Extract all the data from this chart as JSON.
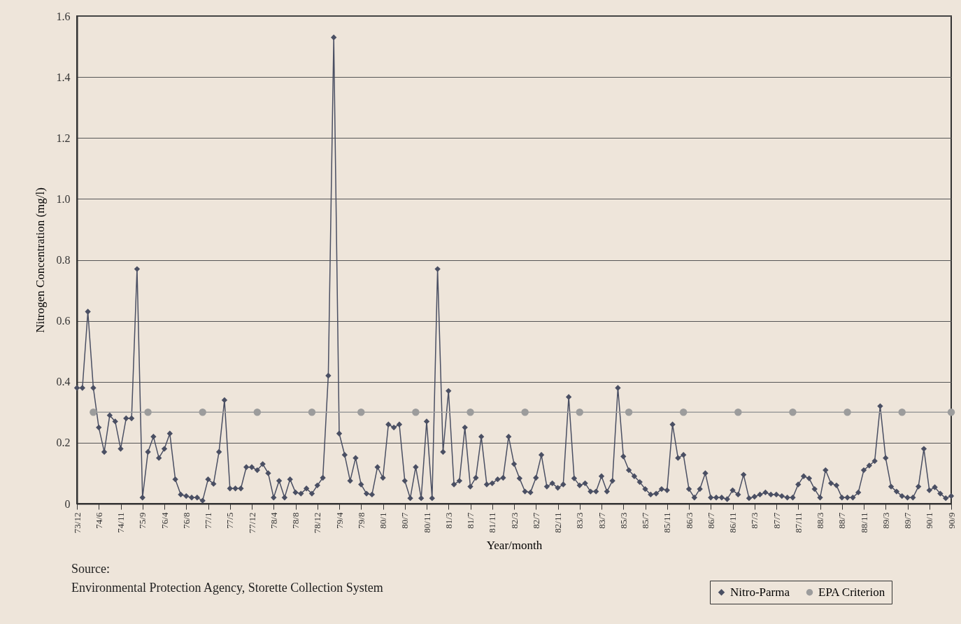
{
  "chart_data": {
    "type": "line",
    "xlabel": "Year/month",
    "ylabel": "Nitrogen Concentration (mg/l)",
    "categories": [
      "73/12",
      null,
      null,
      null,
      "74/6",
      null,
      null,
      null,
      "74/11",
      null,
      null,
      null,
      "75/9",
      null,
      null,
      null,
      "76/4",
      null,
      null,
      null,
      "76/8",
      null,
      null,
      null,
      "77/1",
      null,
      null,
      null,
      "77/5",
      null,
      null,
      null,
      "77/12",
      null,
      null,
      null,
      "78/4",
      null,
      null,
      null,
      "78/8",
      null,
      null,
      null,
      "78/12",
      null,
      null,
      null,
      "79/4",
      null,
      null,
      null,
      "79/8",
      null,
      null,
      null,
      "80/1",
      null,
      null,
      null,
      "80/7",
      null,
      null,
      null,
      "80/11",
      null,
      null,
      null,
      "81/3",
      null,
      null,
      null,
      "81/7",
      null,
      null,
      null,
      "81/11",
      null,
      null,
      null,
      "82/3",
      null,
      null,
      null,
      "82/7",
      null,
      null,
      null,
      "82/11",
      null,
      null,
      null,
      "83/3",
      null,
      null,
      null,
      "83/7",
      null,
      null,
      null,
      "85/3",
      null,
      null,
      null,
      "85/7",
      null,
      null,
      null,
      "85/11",
      null,
      null,
      null,
      "86/3",
      null,
      null,
      null,
      "86/7",
      null,
      null,
      null,
      "86/11",
      null,
      null,
      null,
      "87/3",
      null,
      null,
      null,
      "87/7",
      null,
      null,
      null,
      "87/11",
      null,
      null,
      null,
      "88/3",
      null,
      null,
      null,
      "88/7",
      null,
      null,
      null,
      "88/11",
      null,
      null,
      null,
      "89/3",
      null,
      null,
      null,
      "89/7",
      null,
      null,
      null,
      "90/1",
      null,
      null,
      null,
      "90/9"
    ],
    "series": [
      {
        "name": "Nitro-Parma",
        "color": "#4a4f63",
        "marker": "diamond",
        "values": [
          0.38,
          0.38,
          0.63,
          0.38,
          0.25,
          0.17,
          0.29,
          0.27,
          0.18,
          0.28,
          0.28,
          0.77,
          0.02,
          0.17,
          0.22,
          0.15,
          0.18,
          0.23,
          0.08,
          0.03,
          0.025,
          0.02,
          0.02,
          0.01,
          0.08,
          0.065,
          0.17,
          0.34,
          0.05,
          0.05,
          0.05,
          0.12,
          0.12,
          0.11,
          0.13,
          0.1,
          0.02,
          0.075,
          0.02,
          0.08,
          0.037,
          0.033,
          0.05,
          0.033,
          0.06,
          0.085,
          0.42,
          1.53,
          0.23,
          0.16,
          0.075,
          0.15,
          0.063,
          0.033,
          0.03,
          0.12,
          0.085,
          0.26,
          0.25,
          0.26,
          0.075,
          0.018,
          0.12,
          0.018,
          0.27,
          0.018,
          0.77,
          0.17,
          0.37,
          0.063,
          0.075,
          0.25,
          0.056,
          0.085,
          0.22,
          0.063,
          0.067,
          0.08,
          0.085,
          0.22,
          0.13,
          0.083,
          0.04,
          0.037,
          0.085,
          0.16,
          0.056,
          0.067,
          0.052,
          0.063,
          0.35,
          0.083,
          0.06,
          0.067,
          0.04,
          0.04,
          0.09,
          0.04,
          0.075,
          0.38,
          0.155,
          0.11,
          0.09,
          0.071,
          0.048,
          0.03,
          0.033,
          0.048,
          0.044,
          0.26,
          0.15,
          0.16,
          0.048,
          0.02,
          0.048,
          0.1,
          0.02,
          0.02,
          0.02,
          0.015,
          0.044,
          0.03,
          0.095,
          0.018,
          0.023,
          0.03,
          0.037,
          0.03,
          0.03,
          0.025,
          0.02,
          0.02,
          0.063,
          0.09,
          0.083,
          0.048,
          0.02,
          0.11,
          0.067,
          0.06,
          0.02,
          0.02,
          0.02,
          0.037,
          0.11,
          0.125,
          0.14,
          0.32,
          0.15,
          0.056,
          0.04,
          0.025,
          0.02,
          0.02,
          0.056,
          0.18,
          0.044,
          0.054,
          0.033,
          0.018,
          0.025
        ]
      },
      {
        "name": "EPA Criterion",
        "color": "#9c9c9c",
        "marker": "circle",
        "values": [
          null,
          null,
          null,
          0.3,
          null,
          null,
          null,
          null,
          null,
          null,
          null,
          null,
          null,
          0.3,
          null,
          null,
          null,
          null,
          null,
          null,
          null,
          null,
          null,
          0.3,
          null,
          null,
          null,
          null,
          null,
          null,
          null,
          null,
          null,
          0.3,
          null,
          null,
          null,
          null,
          null,
          null,
          null,
          null,
          null,
          0.3,
          null,
          null,
          null,
          null,
          null,
          null,
          null,
          null,
          0.3,
          null,
          null,
          null,
          null,
          null,
          null,
          null,
          null,
          null,
          0.3,
          null,
          null,
          null,
          null,
          null,
          null,
          null,
          null,
          null,
          0.3,
          null,
          null,
          null,
          null,
          null,
          null,
          null,
          null,
          null,
          0.3,
          null,
          null,
          null,
          null,
          null,
          null,
          null,
          null,
          null,
          0.3,
          null,
          null,
          null,
          null,
          null,
          null,
          null,
          null,
          0.3,
          null,
          null,
          null,
          null,
          null,
          null,
          null,
          null,
          null,
          0.3,
          null,
          null,
          null,
          null,
          null,
          null,
          null,
          null,
          null,
          0.3,
          null,
          null,
          null,
          null,
          null,
          null,
          null,
          null,
          null,
          0.3,
          null,
          null,
          null,
          null,
          null,
          null,
          null,
          null,
          null,
          0.3,
          null,
          null,
          null,
          null,
          null,
          null,
          null,
          null,
          null,
          0.3,
          null,
          null,
          null,
          null,
          null,
          null,
          null,
          null,
          0.3
        ]
      }
    ],
    "ylim": [
      0,
      1.6
    ],
    "yticks": [
      0,
      0.2,
      0.4,
      0.6,
      0.8,
      {
        "value": 1,
        "label": "1.0"
      },
      1.2,
      1.4,
      1.6
    ],
    "grid": "y",
    "legend": "bottom right",
    "line_style": "solid",
    "annotations": [
      "Source:",
      "Environmental Protection Agency, Storette Collection System"
    ]
  }
}
